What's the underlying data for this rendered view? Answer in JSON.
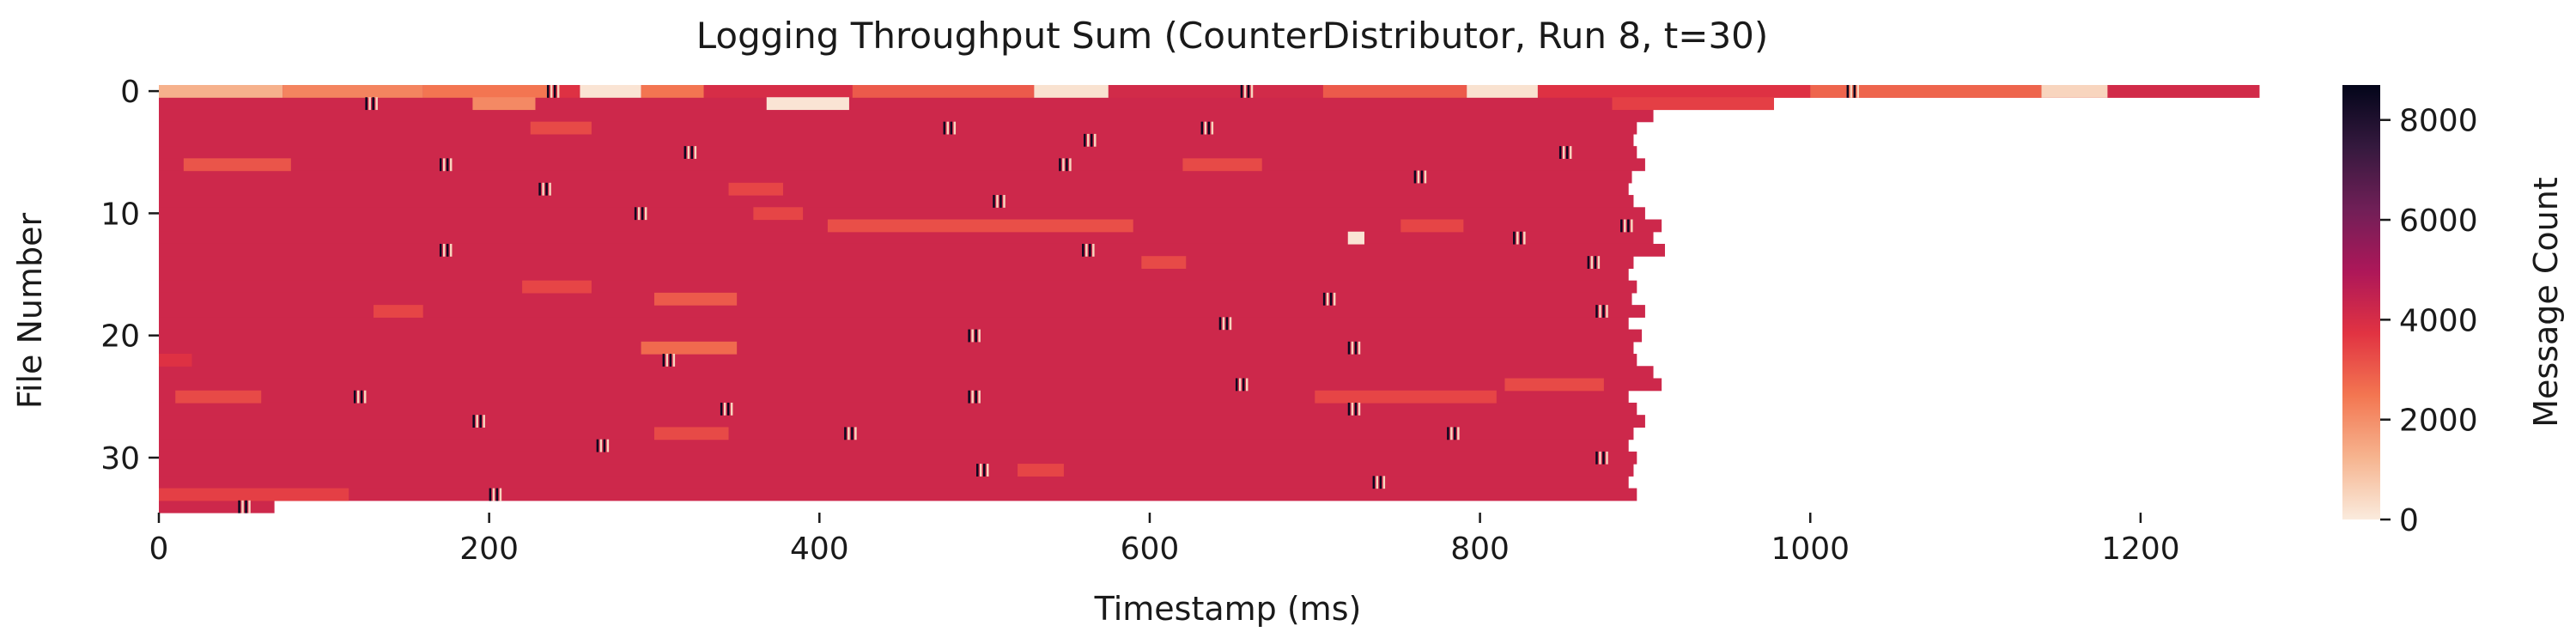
{
  "chart_data": {
    "type": "heatmap",
    "title": "Logging Throughput Sum (CounterDistributor, Run 8, t=30)",
    "xlabel": "Timestamp (ms)",
    "ylabel": "File Number",
    "colorbar_label": "Message Count",
    "xlim": [
      0,
      1290
    ],
    "ylim": [
      0,
      34
    ],
    "y_inverted": true,
    "x_ticks": [
      0,
      200,
      400,
      600,
      800,
      1000,
      1200
    ],
    "y_ticks": [
      0,
      10,
      20,
      30
    ],
    "colorbar_ticks": [
      0,
      2000,
      4000,
      6000,
      8000
    ],
    "color_range": [
      0,
      8700
    ],
    "colormap": "rocket_r",
    "colormap_stops": [
      "#faebdd",
      "#f6b48f",
      "#f37651",
      "#e13342",
      "#ad1759",
      "#701f57",
      "#35193e",
      "#03051a"
    ],
    "dominant_value": 4200,
    "row_extents_ms": [
      1272,
      978,
      905,
      895,
      893,
      895,
      900,
      892,
      890,
      893,
      900,
      910,
      905,
      912,
      893,
      890,
      895,
      892,
      900,
      890,
      898,
      893,
      895,
      905,
      910,
      890,
      895,
      900,
      893,
      890,
      895,
      893,
      890,
      895,
      70
    ],
    "segments": [
      {
        "row": 0,
        "from": 0,
        "to": 75,
        "value": 1300
      },
      {
        "row": 0,
        "from": 75,
        "to": 160,
        "value": 2200
      },
      {
        "row": 0,
        "from": 160,
        "to": 235,
        "value": 2500
      },
      {
        "row": 0,
        "from": 235,
        "to": 255,
        "value": 3800
      },
      {
        "row": 0,
        "from": 255,
        "to": 292,
        "value": 150
      },
      {
        "row": 0,
        "from": 292,
        "to": 330,
        "value": 2500
      },
      {
        "row": 0,
        "from": 330,
        "to": 420,
        "value": 4000
      },
      {
        "row": 0,
        "from": 420,
        "to": 530,
        "value": 3000
      },
      {
        "row": 0,
        "from": 530,
        "to": 575,
        "value": 200
      },
      {
        "row": 0,
        "from": 575,
        "to": 705,
        "value": 4100
      },
      {
        "row": 0,
        "from": 705,
        "to": 792,
        "value": 3000
      },
      {
        "row": 0,
        "from": 792,
        "to": 835,
        "value": 200
      },
      {
        "row": 0,
        "from": 835,
        "to": 1000,
        "value": 3800
      },
      {
        "row": 0,
        "from": 1000,
        "to": 1140,
        "value": 2800
      },
      {
        "row": 0,
        "from": 1140,
        "to": 1180,
        "value": 500
      },
      {
        "row": 0,
        "from": 1180,
        "to": 1272,
        "value": 4100
      },
      {
        "row": 1,
        "from": 190,
        "to": 228,
        "value": 2100
      },
      {
        "row": 1,
        "from": 368,
        "to": 418,
        "value": 150
      },
      {
        "row": 1,
        "from": 880,
        "to": 978,
        "value": 3500
      },
      {
        "row": 3,
        "from": 225,
        "to": 262,
        "value": 3300
      },
      {
        "row": 6,
        "from": 15,
        "to": 80,
        "value": 3100
      },
      {
        "row": 6,
        "from": 620,
        "to": 668,
        "value": 3300
      },
      {
        "row": 8,
        "from": 345,
        "to": 378,
        "value": 3400
      },
      {
        "row": 10,
        "from": 360,
        "to": 390,
        "value": 3400
      },
      {
        "row": 11,
        "from": 405,
        "to": 590,
        "value": 3200
      },
      {
        "row": 11,
        "from": 752,
        "to": 790,
        "value": 3400
      },
      {
        "row": 12,
        "from": 720,
        "to": 730,
        "value": 150
      },
      {
        "row": 14,
        "from": 595,
        "to": 622,
        "value": 3300
      },
      {
        "row": 16,
        "from": 220,
        "to": 262,
        "value": 3400
      },
      {
        "row": 17,
        "from": 300,
        "to": 350,
        "value": 3000
      },
      {
        "row": 18,
        "from": 130,
        "to": 160,
        "value": 3400
      },
      {
        "row": 21,
        "from": 292,
        "to": 350,
        "value": 2700
      },
      {
        "row": 22,
        "from": 0,
        "to": 20,
        "value": 3800
      },
      {
        "row": 24,
        "from": 815,
        "to": 875,
        "value": 3300
      },
      {
        "row": 25,
        "from": 700,
        "to": 810,
        "value": 3400
      },
      {
        "row": 25,
        "from": 10,
        "to": 62,
        "value": 3300
      },
      {
        "row": 28,
        "from": 300,
        "to": 345,
        "value": 3300
      },
      {
        "row": 31,
        "from": 520,
        "to": 548,
        "value": 3400
      },
      {
        "row": 33,
        "from": 0,
        "to": 115,
        "value": 3500
      }
    ],
    "spikes": [
      {
        "row": 1,
        "x": 125
      },
      {
        "row": 0,
        "x": 235
      },
      {
        "row": 0,
        "x": 655
      },
      {
        "row": 0,
        "x": 1022
      },
      {
        "row": 3,
        "x": 631
      },
      {
        "row": 3,
        "x": 475
      },
      {
        "row": 4,
        "x": 560
      },
      {
        "row": 5,
        "x": 318
      },
      {
        "row": 5,
        "x": 848
      },
      {
        "row": 6,
        "x": 170
      },
      {
        "row": 6,
        "x": 545
      },
      {
        "row": 7,
        "x": 760
      },
      {
        "row": 8,
        "x": 230
      },
      {
        "row": 9,
        "x": 505
      },
      {
        "row": 10,
        "x": 288
      },
      {
        "row": 11,
        "x": 885
      },
      {
        "row": 12,
        "x": 820
      },
      {
        "row": 13,
        "x": 559
      },
      {
        "row": 13,
        "x": 170
      },
      {
        "row": 14,
        "x": 865
      },
      {
        "row": 17,
        "x": 705
      },
      {
        "row": 18,
        "x": 870
      },
      {
        "row": 19,
        "x": 642
      },
      {
        "row": 20,
        "x": 490
      },
      {
        "row": 21,
        "x": 720
      },
      {
        "row": 22,
        "x": 305
      },
      {
        "row": 24,
        "x": 652
      },
      {
        "row": 25,
        "x": 118
      },
      {
        "row": 25,
        "x": 490
      },
      {
        "row": 26,
        "x": 340
      },
      {
        "row": 26,
        "x": 720
      },
      {
        "row": 27,
        "x": 190
      },
      {
        "row": 28,
        "x": 780
      },
      {
        "row": 28,
        "x": 415
      },
      {
        "row": 29,
        "x": 265
      },
      {
        "row": 30,
        "x": 870
      },
      {
        "row": 31,
        "x": 495
      },
      {
        "row": 32,
        "x": 735
      },
      {
        "row": 33,
        "x": 200
      },
      {
        "row": 34,
        "x": 48
      }
    ]
  }
}
